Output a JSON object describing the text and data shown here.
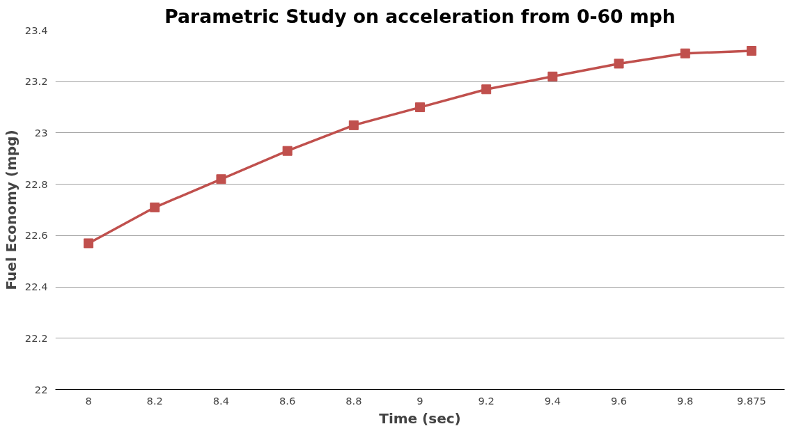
{
  "chart_data": {
    "type": "line",
    "title": "Parametric Study on acceleration from 0-60 mph",
    "xlabel": "Time (sec)",
    "ylabel": "Fuel Economy (mpg)",
    "categories": [
      "8",
      "8.2",
      "8.4",
      "8.6",
      "8.8",
      "9",
      "9.2",
      "9.4",
      "9.6",
      "9.8",
      "9.875"
    ],
    "series": [
      {
        "color": "#c0504d",
        "values": [
          22.57,
          22.71,
          22.82,
          22.93,
          23.03,
          23.1,
          23.17,
          23.22,
          23.27,
          23.31,
          23.32
        ]
      }
    ],
    "ylim": [
      22,
      23.4
    ],
    "yticks": [
      22,
      22.2,
      22.4,
      22.6,
      22.8,
      23,
      23.2,
      23.4
    ],
    "grid": "y",
    "marker": "square",
    "line_style": "solid"
  }
}
